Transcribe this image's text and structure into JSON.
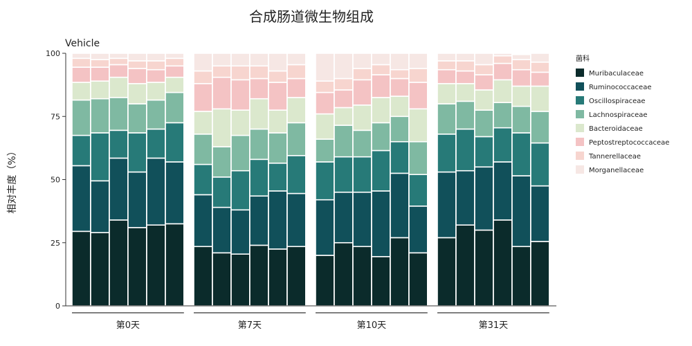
{
  "chart_data": {
    "type": "bar",
    "stacked": true,
    "title": "合成肠道微生物组成",
    "subtitle": "Vehicle",
    "xlabel": "",
    "ylabel": "相对丰度（%）",
    "ylim": [
      0,
      100
    ],
    "yticks": [
      0,
      25,
      50,
      75,
      100
    ],
    "grid": false,
    "legend": {
      "title": "菌科",
      "position": "right"
    },
    "groups": [
      {
        "label": "第0天",
        "bars": 6
      },
      {
        "label": "第7天",
        "bars": 6
      },
      {
        "label": "第10天",
        "bars": 6
      },
      {
        "label": "第31天",
        "bars": 6
      }
    ],
    "series": [
      {
        "name": "Muribaculaceae",
        "color": "#0b2b2b",
        "values": [
          29.5,
          29,
          34,
          31,
          32,
          32.5,
          23.5,
          21,
          20.5,
          24,
          22.5,
          23.5,
          20,
          25,
          23.5,
          19.5,
          27,
          21,
          27,
          32,
          30,
          34,
          23.5,
          25.5
        ]
      },
      {
        "name": "Ruminococcaceae",
        "color": "#11505a",
        "values": [
          26,
          20.5,
          24.5,
          22,
          26.5,
          24.5,
          20.5,
          18,
          17.5,
          19.5,
          23,
          21,
          22,
          20,
          21.5,
          26,
          25.5,
          18.5,
          26,
          21.5,
          25,
          23,
          28,
          22
        ]
      },
      {
        "name": "Oscillospiraceae",
        "color": "#277a78",
        "values": [
          12,
          19,
          11,
          15.5,
          11.5,
          15.5,
          12,
          12,
          15.5,
          14.5,
          11,
          15,
          15,
          14,
          14,
          16,
          12.5,
          12.5,
          15,
          16.5,
          12,
          13.5,
          17,
          17
        ]
      },
      {
        "name": "Lachnospiraceae",
        "color": "#7fb9a2",
        "values": [
          14,
          13.5,
          13,
          11.5,
          11.5,
          12,
          12,
          12,
          14,
          12,
          12,
          13,
          9,
          12.5,
          10.5,
          11,
          10,
          13,
          12,
          11,
          10.5,
          10,
          10.5,
          12.5
        ]
      },
      {
        "name": "Bacteroidaceae",
        "color": "#dbe8cd",
        "values": [
          7,
          7,
          8,
          8,
          7,
          6,
          9,
          15,
          10,
          12,
          9,
          10,
          10,
          7,
          10,
          10,
          8,
          13,
          8,
          7,
          8,
          9,
          8,
          10
        ]
      },
      {
        "name": "Peptostreptococcaceae",
        "color": "#f4c3c4",
        "values": [
          6,
          5.5,
          5,
          6,
          5,
          4.5,
          11,
          12.5,
          12,
          8,
          11,
          7.5,
          8.5,
          7,
          10,
          9,
          7,
          10.5,
          5.5,
          5,
          6,
          6.5,
          6.5,
          5.5
        ]
      },
      {
        "name": "Tannerellaceae",
        "color": "#f7d5cf",
        "values": [
          3.5,
          3,
          2.5,
          3,
          3.5,
          3,
          5,
          4.5,
          5.5,
          5,
          4.5,
          5.5,
          4.5,
          4.5,
          4.5,
          4,
          3.5,
          5.5,
          3.5,
          4,
          4,
          3,
          4,
          4
        ]
      },
      {
        "name": "Morganellaceae",
        "color": "#f6e7e4",
        "values": [
          2,
          2.5,
          2,
          3,
          3,
          2,
          7,
          5,
          5,
          5,
          7,
          4.5,
          11,
          10,
          6,
          4.5,
          6.5,
          6,
          3,
          3,
          4.5,
          1,
          2,
          3.5
        ]
      }
    ]
  }
}
